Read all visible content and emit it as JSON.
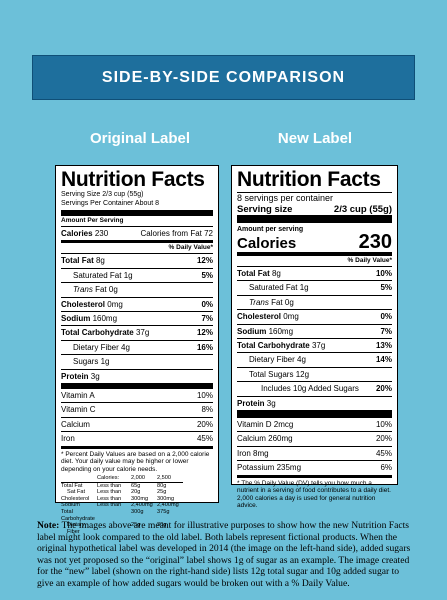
{
  "banner": {
    "title": "SIDE-BY-SIDE COMPARISON"
  },
  "original": {
    "heading": "Original Label",
    "title": "Nutrition Facts",
    "serving_size": "Serving Size 2/3 cup (55g)",
    "servings_per": "Servings Per Container About 8",
    "amount_per": "Amount Per Serving",
    "calories_label": "Calories",
    "calories_value": "230",
    "calories_fat": "Calories from Fat 72",
    "dv_header": "% Daily Value*",
    "rows": [
      {
        "label": "Total Fat",
        "amount": "8g",
        "dv": "12%",
        "bold": true,
        "indent": 0
      },
      {
        "label": "Saturated Fat",
        "amount": "1g",
        "dv": "5%",
        "bold": false,
        "indent": 1
      },
      {
        "label": "Trans",
        "amount": "Fat 0g",
        "dv": "",
        "bold": false,
        "indent": 1,
        "italic": true
      },
      {
        "label": "Cholesterol",
        "amount": "0mg",
        "dv": "0%",
        "bold": true,
        "indent": 0
      },
      {
        "label": "Sodium",
        "amount": "160mg",
        "dv": "7%",
        "bold": true,
        "indent": 0
      },
      {
        "label": "Total Carbohydrate",
        "amount": "37g",
        "dv": "12%",
        "bold": true,
        "indent": 0
      },
      {
        "label": "Dietary Fiber",
        "amount": "4g",
        "dv": "16%",
        "bold": false,
        "indent": 1
      },
      {
        "label": "Sugars",
        "amount": "1g",
        "dv": "",
        "bold": false,
        "indent": 1
      },
      {
        "label": "Protein",
        "amount": "3g",
        "dv": "",
        "bold": true,
        "indent": 0
      }
    ],
    "vitamins": [
      {
        "label": "Vitamin A",
        "dv": "10%"
      },
      {
        "label": "Vitamin C",
        "dv": "8%"
      },
      {
        "label": "Calcium",
        "dv": "20%"
      },
      {
        "label": "Iron",
        "dv": "45%"
      }
    ],
    "footnote": "* Percent Daily Values are based on a 2,000 calorie diet. Your daily value may be higher or lower depending on your calorie needs.",
    "table_header": [
      "",
      "Calories:",
      "2,000",
      "2,500"
    ],
    "table_rows": [
      [
        "Total Fat",
        "Less than",
        "65g",
        "80g"
      ],
      [
        "Sat Fat",
        "Less than",
        "20g",
        "25g"
      ],
      [
        "Cholesterol",
        "Less than",
        "300mg",
        "300mg"
      ],
      [
        "Sodium",
        "Less than",
        "2,400mg",
        "2,400mg"
      ],
      [
        "Total Carbohydrate",
        "",
        "300g",
        "375g"
      ],
      [
        "Dietary Fiber",
        "",
        "25g",
        "30g"
      ]
    ]
  },
  "new": {
    "heading": "New Label",
    "title": "Nutrition Facts",
    "servings_per": "8 servings per container",
    "serving_size_label": "Serving size",
    "serving_size_value": "2/3 cup (55g)",
    "amount_per": "Amount per serving",
    "calories_label": "Calories",
    "calories_value": "230",
    "dv_header": "% Daily Value*",
    "rows": [
      {
        "label": "Total Fat",
        "amount": "8g",
        "dv": "10%",
        "bold": true,
        "indent": 0
      },
      {
        "label": "Saturated Fat",
        "amount": "1g",
        "dv": "5%",
        "bold": false,
        "indent": 1
      },
      {
        "label": "Trans",
        "amount": "Fat 0g",
        "dv": "",
        "bold": false,
        "indent": 1,
        "italic": true
      },
      {
        "label": "Cholesterol",
        "amount": "0mg",
        "dv": "0%",
        "bold": true,
        "indent": 0
      },
      {
        "label": "Sodium",
        "amount": "160mg",
        "dv": "7%",
        "bold": true,
        "indent": 0
      },
      {
        "label": "Total Carbohydrate",
        "amount": "37g",
        "dv": "13%",
        "bold": true,
        "indent": 0
      },
      {
        "label": "Dietary Fiber",
        "amount": "4g",
        "dv": "14%",
        "bold": false,
        "indent": 1
      },
      {
        "label": "Total Sugars",
        "amount": "12g",
        "dv": "",
        "bold": false,
        "indent": 1
      },
      {
        "label": "Includes 10g Added Sugars",
        "amount": "",
        "dv": "20%",
        "bold": false,
        "indent": 2
      },
      {
        "label": "Protein",
        "amount": "3g",
        "dv": "",
        "bold": true,
        "indent": 0
      }
    ],
    "vitamins": [
      {
        "label": "Vitamin D 2mcg",
        "dv": "10%"
      },
      {
        "label": "Calcium 260mg",
        "dv": "20%"
      },
      {
        "label": "Iron 8mg",
        "dv": "45%"
      },
      {
        "label": "Potassium 235mg",
        "dv": "6%"
      }
    ],
    "footnote": "* The % Daily Value (DV) tells you how much a nutrient in a serving of food contributes to a daily diet. 2,000 calories a day is used for general nutrition advice."
  },
  "note": {
    "lead": "Note:",
    "text": " The images above are meant for illustrative purposes to show how the new Nutrition Facts label might look compared to the old label. Both labels represent fictional products. When the original hypothetical label was developed in 2014 (the image on the left-hand side), added sugars was not yet proposed so the “original” label shows 1g of sugar as an example. The image created for the “new” label (shown on the right-hand side) lists 12g total sugar and 10g added sugar to give an example of how added sugars would be broken out with a % Daily Value."
  }
}
